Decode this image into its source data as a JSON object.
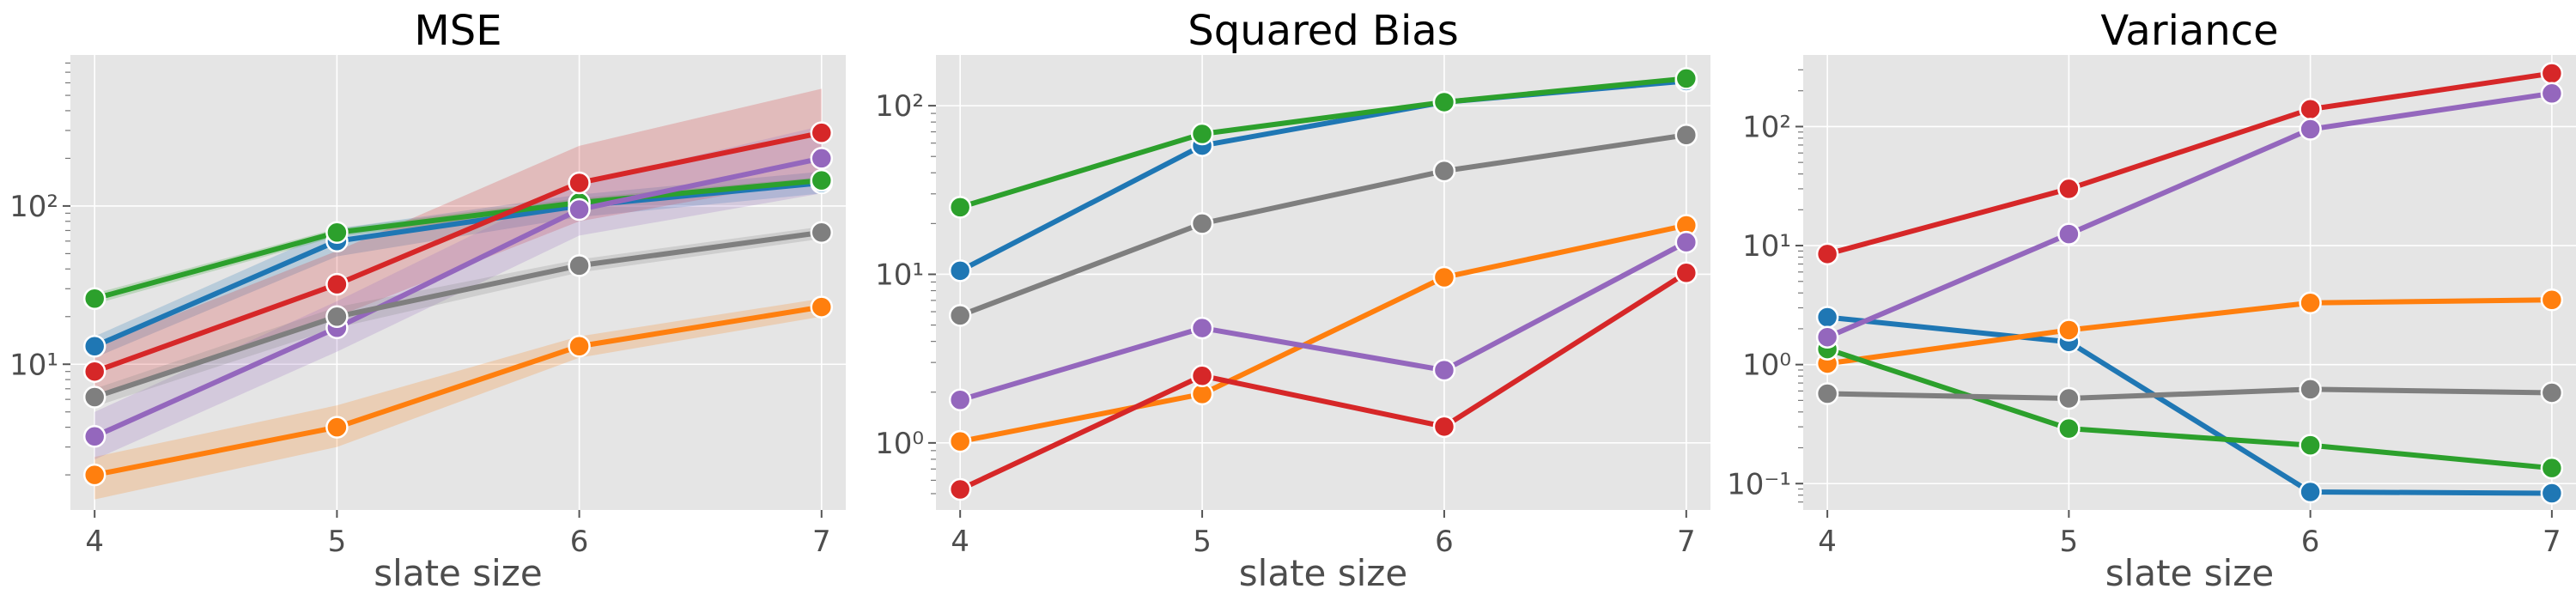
{
  "chart_data": [
    {
      "type": "line",
      "title": "MSE",
      "xlabel": "slate size",
      "ylabel": "",
      "x": [
        4,
        5,
        6,
        7
      ],
      "xlim": [
        3.9,
        7.1
      ],
      "yscale": "log",
      "ylim": [
        1.2,
        900
      ],
      "yticks": [
        10,
        100
      ],
      "ytick_labels": [
        "10¹",
        "10²"
      ],
      "xtick_labels": [
        "4",
        "5",
        "6",
        "7"
      ],
      "grid": true,
      "series": [
        {
          "color": "#1f77b4",
          "values": [
            13,
            60,
            100,
            140
          ],
          "band_low": [
            11,
            48,
            85,
            120
          ],
          "band_high": [
            15,
            72,
            118,
            165
          ]
        },
        {
          "color": "#ff7f0e",
          "values": [
            2,
            4,
            13,
            23
          ],
          "band_low": [
            1.4,
            3,
            11,
            20
          ],
          "band_high": [
            2.6,
            5.5,
            15,
            26
          ]
        },
        {
          "color": "#2ca02c",
          "values": [
            26,
            68,
            105,
            145
          ],
          "band_low": [
            24,
            64,
            98,
            138
          ],
          "band_high": [
            28,
            72,
            112,
            152
          ]
        },
        {
          "color": "#d62728",
          "values": [
            9,
            32,
            140,
            290
          ],
          "band_low": [
            6,
            20,
            80,
            150
          ],
          "band_high": [
            13,
            52,
            240,
            550
          ]
        },
        {
          "color": "#9467bd",
          "values": [
            3.5,
            17,
            95,
            200
          ],
          "band_low": [
            2.5,
            12,
            65,
            120
          ],
          "band_high": [
            5,
            25,
            140,
            320
          ]
        },
        {
          "color": "#7f7f7f",
          "values": [
            6.2,
            20,
            42,
            68
          ],
          "band_low": [
            5.4,
            17,
            38,
            62
          ],
          "band_high": [
            7,
            23,
            46,
            74
          ]
        }
      ]
    },
    {
      "type": "line",
      "title": "Squared Bias",
      "xlabel": "slate size",
      "ylabel": "",
      "x": [
        4,
        5,
        6,
        7
      ],
      "xlim": [
        3.9,
        7.1
      ],
      "yscale": "log",
      "ylim": [
        0.4,
        200
      ],
      "yticks": [
        1,
        10,
        100
      ],
      "ytick_labels": [
        "10⁰",
        "10¹",
        "10²"
      ],
      "xtick_labels": [
        "4",
        "5",
        "6",
        "7"
      ],
      "grid": true,
      "series": [
        {
          "color": "#1f77b4",
          "values": [
            10.5,
            58,
            105,
            140
          ]
        },
        {
          "color": "#ff7f0e",
          "values": [
            1.02,
            1.95,
            9.6,
            19.5
          ]
        },
        {
          "color": "#2ca02c",
          "values": [
            25,
            68,
            105,
            145
          ]
        },
        {
          "color": "#d62728",
          "values": [
            0.53,
            2.5,
            1.25,
            10.2
          ]
        },
        {
          "color": "#9467bd",
          "values": [
            1.8,
            4.8,
            2.7,
            15.5
          ]
        },
        {
          "color": "#7f7f7f",
          "values": [
            5.7,
            20,
            41,
            67
          ]
        }
      ]
    },
    {
      "type": "line",
      "title": "Variance",
      "xlabel": "slate size",
      "ylabel": "",
      "x": [
        4,
        5,
        6,
        7
      ],
      "xlim": [
        3.9,
        7.1
      ],
      "yscale": "log",
      "ylim": [
        0.06,
        400
      ],
      "yticks": [
        0.1,
        1,
        10,
        100
      ],
      "ytick_labels": [
        "10⁻¹",
        "10⁰",
        "10¹",
        "10²"
      ],
      "xtick_labels": [
        "4",
        "5",
        "6",
        "7"
      ],
      "grid": true,
      "series": [
        {
          "color": "#1f77b4",
          "values": [
            2.5,
            1.55,
            0.085,
            0.083
          ]
        },
        {
          "color": "#ff7f0e",
          "values": [
            1.02,
            1.95,
            3.3,
            3.5
          ]
        },
        {
          "color": "#2ca02c",
          "values": [
            1.35,
            0.29,
            0.21,
            0.135
          ]
        },
        {
          "color": "#d62728",
          "values": [
            8.5,
            30,
            140,
            280
          ]
        },
        {
          "color": "#9467bd",
          "values": [
            1.7,
            12.5,
            95,
            190
          ]
        },
        {
          "color": "#7f7f7f",
          "values": [
            0.57,
            0.52,
            0.62,
            0.58
          ]
        }
      ]
    }
  ]
}
